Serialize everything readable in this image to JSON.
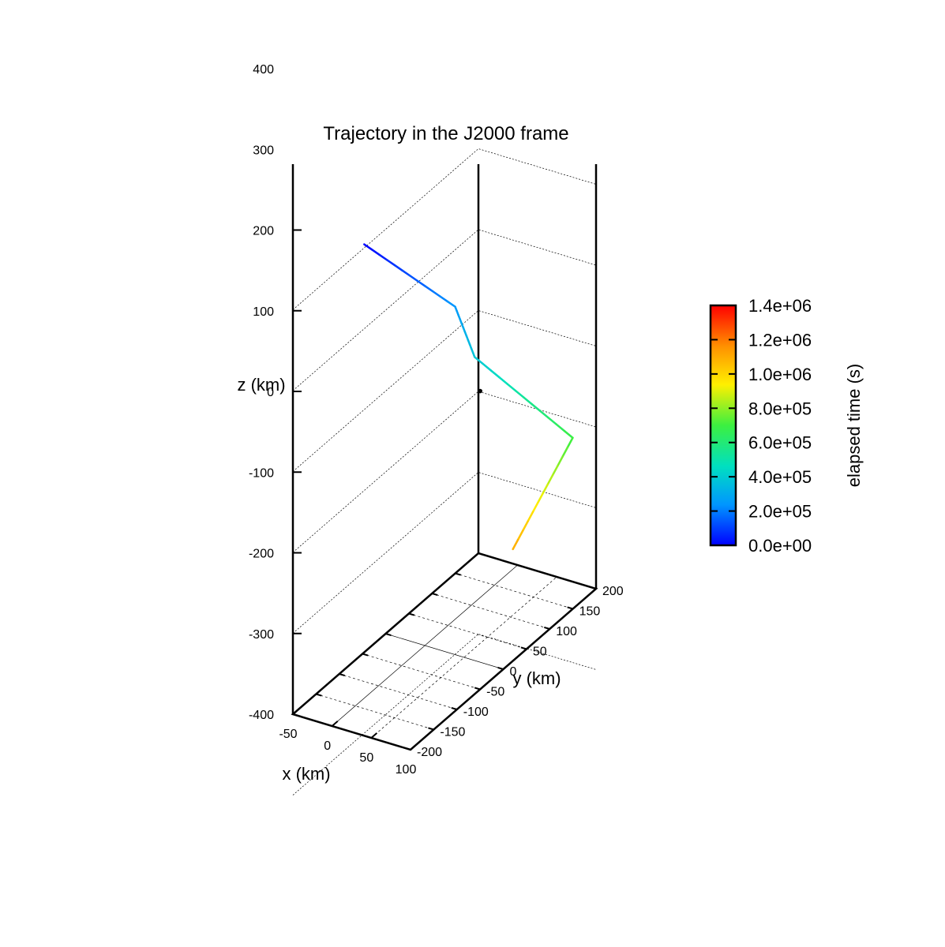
{
  "chart_data": {
    "type": "line",
    "title": "Trajectory in the J2000 frame",
    "xlabel": "x (km)",
    "ylabel": "y (km)",
    "zlabel": "z (km)",
    "xlim": [
      -50,
      100
    ],
    "ylim": [
      -200,
      200
    ],
    "zlim": [
      -400,
      300
    ],
    "x_ticks": [
      "-50",
      "0",
      "50",
      "100"
    ],
    "y_ticks": [
      "-200",
      "-150",
      "-100",
      "-50",
      "0",
      "50",
      "100",
      "150",
      "200"
    ],
    "z_ticks": [
      "-400",
      "-300",
      "-200",
      "-100",
      "0",
      "100",
      "200",
      "300",
      "400"
    ],
    "grid": true,
    "series": [
      {
        "x": [
          -30,
          12,
          28,
          88,
          62
        ],
        "y": [
          -80,
          45,
          60,
          170,
          85
        ],
        "z": [
          327,
          200,
          135,
          -2,
          -105
        ],
        "t": [
          0,
          240000,
          380000,
          690000,
          1100000
        ]
      }
    ],
    "marker_point": {
      "x": 35,
      "y": 60,
      "z": 95
    },
    "colorbar": {
      "label": "elapsed time (s)",
      "min": 0,
      "max": 1400000,
      "ticks": [
        "0.0e+00",
        "2.0e+05",
        "4.0e+05",
        "6.0e+05",
        "8.0e+05",
        "1.0e+06",
        "1.2e+06",
        "1.4e+06"
      ],
      "colors": [
        "#0000ff",
        "#0096ff",
        "#00e0c0",
        "#3cf040",
        "#fff000",
        "#ff9000",
        "#ff0000"
      ]
    }
  }
}
